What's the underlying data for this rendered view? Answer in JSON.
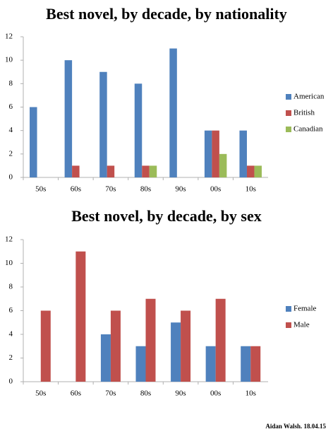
{
  "chart_data": [
    {
      "type": "bar",
      "title": "Best novel, by decade, by nationality",
      "categories": [
        "50s",
        "60s",
        "70s",
        "80s",
        "90s",
        "00s",
        "10s"
      ],
      "series": [
        {
          "name": "American",
          "color": "#4f81bd",
          "values": [
            6,
            10,
            9,
            8,
            11,
            4,
            4
          ]
        },
        {
          "name": "British",
          "color": "#c0504d",
          "values": [
            0,
            1,
            1,
            1,
            0,
            4,
            1
          ]
        },
        {
          "name": "Canadian",
          "color": "#9bbb59",
          "values": [
            0,
            0,
            0,
            1,
            0,
            2,
            1
          ]
        }
      ],
      "ylim": [
        0,
        12
      ],
      "yticks": [
        0,
        2,
        4,
        6,
        8,
        10,
        12
      ],
      "grid": false,
      "legend": "right"
    },
    {
      "type": "bar",
      "title": "Best novel, by decade, by sex",
      "categories": [
        "50s",
        "60s",
        "70s",
        "80s",
        "90s",
        "00s",
        "10s"
      ],
      "series": [
        {
          "name": "Female",
          "color": "#4f81bd",
          "values": [
            0,
            0,
            4,
            3,
            5,
            3,
            3
          ]
        },
        {
          "name": "Male",
          "color": "#c0504d",
          "values": [
            6,
            11,
            6,
            7,
            6,
            7,
            3
          ]
        }
      ],
      "ylim": [
        0,
        12
      ],
      "yticks": [
        0,
        2,
        4,
        6,
        8,
        10,
        12
      ],
      "grid": false,
      "legend": "right"
    }
  ],
  "footer": "Aidan Walsh. 18.04.15"
}
